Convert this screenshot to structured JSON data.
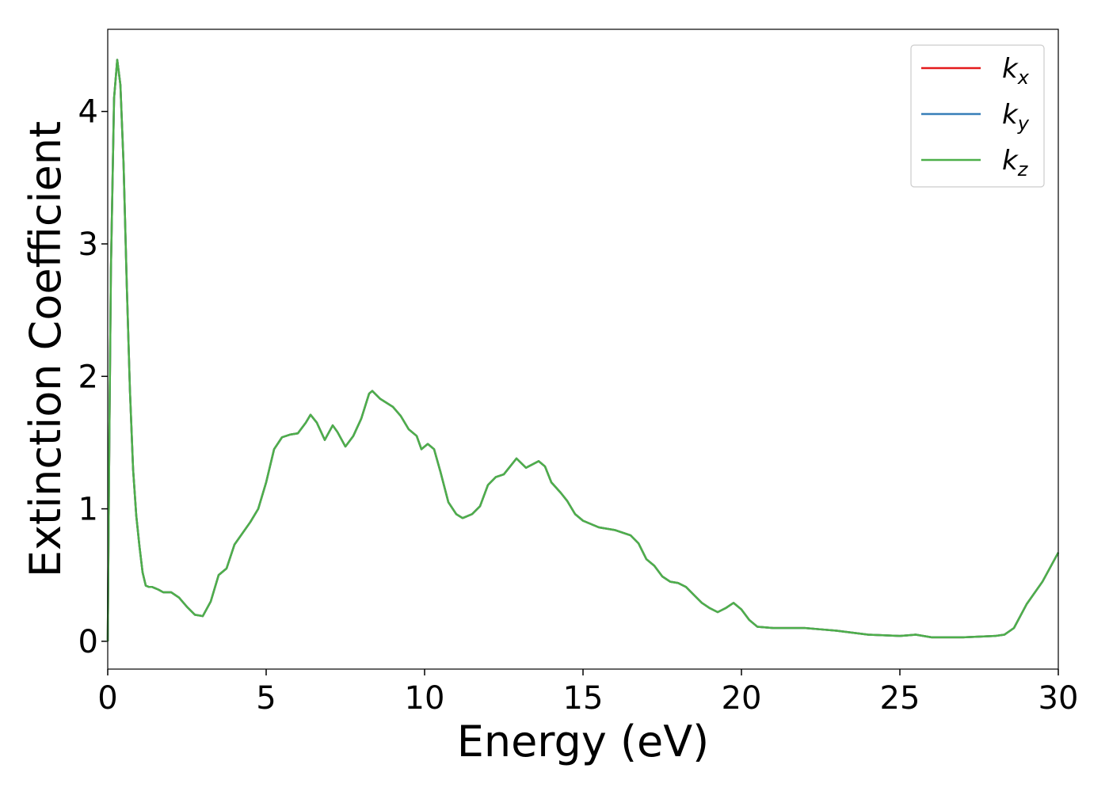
{
  "chart_data": {
    "type": "line",
    "xlabel": "Energy (eV)",
    "ylabel": "Extinction Coefficient",
    "xlim": [
      0,
      30
    ],
    "ylim": [
      -0.21,
      4.62
    ],
    "xticks": [
      0,
      5,
      10,
      15,
      20,
      25,
      30
    ],
    "yticks": [
      0,
      1,
      2,
      3,
      4
    ],
    "legend": "upper right",
    "x": [
      0,
      0.05,
      0.1,
      0.2,
      0.3,
      0.4,
      0.5,
      0.6,
      0.7,
      0.8,
      0.9,
      1.0,
      1.1,
      1.2,
      1.3,
      1.4,
      1.5,
      1.6,
      1.75,
      2.0,
      2.25,
      2.5,
      2.75,
      3.0,
      3.25,
      3.5,
      3.75,
      4.0,
      4.5,
      4.75,
      5.0,
      5.25,
      5.5,
      5.75,
      6.0,
      6.25,
      6.4,
      6.6,
      6.85,
      7.1,
      7.25,
      7.5,
      7.75,
      8.0,
      8.25,
      8.35,
      8.6,
      9.0,
      9.25,
      9.5,
      9.75,
      9.9,
      10.1,
      10.3,
      10.5,
      10.75,
      11.0,
      11.2,
      11.5,
      11.75,
      12.0,
      12.25,
      12.5,
      12.7,
      12.9,
      13.2,
      13.6,
      13.8,
      14.0,
      14.3,
      14.5,
      14.75,
      15.0,
      15.5,
      16.0,
      16.5,
      16.75,
      17.0,
      17.25,
      17.5,
      17.75,
      18.0,
      18.25,
      18.5,
      18.75,
      19.0,
      19.25,
      19.5,
      19.75,
      20.0,
      20.25,
      20.5,
      21.0,
      21.5,
      22.0,
      22.5,
      23.0,
      24.0,
      25.0,
      25.5,
      26.0,
      27.0,
      28.0,
      28.3,
      28.6,
      29.0,
      29.5,
      30.0
    ],
    "series": [
      {
        "name": "k_x",
        "color": "#e41a1c",
        "values": [
          0,
          1.5,
          2.8,
          4.1,
          4.39,
          4.2,
          3.6,
          2.7,
          1.9,
          1.3,
          0.95,
          0.72,
          0.52,
          0.42,
          0.41,
          0.41,
          0.4,
          0.39,
          0.37,
          0.37,
          0.33,
          0.26,
          0.2,
          0.19,
          0.3,
          0.5,
          0.55,
          0.73,
          0.9,
          1.0,
          1.2,
          1.45,
          1.54,
          1.56,
          1.57,
          1.65,
          1.71,
          1.65,
          1.52,
          1.63,
          1.58,
          1.47,
          1.55,
          1.68,
          1.87,
          1.89,
          1.83,
          1.77,
          1.7,
          1.6,
          1.55,
          1.45,
          1.49,
          1.45,
          1.28,
          1.05,
          0.96,
          0.93,
          0.96,
          1.02,
          1.18,
          1.24,
          1.26,
          1.32,
          1.38,
          1.31,
          1.36,
          1.32,
          1.2,
          1.12,
          1.06,
          0.96,
          0.91,
          0.86,
          0.84,
          0.8,
          0.74,
          0.62,
          0.57,
          0.49,
          0.45,
          0.44,
          0.41,
          0.35,
          0.29,
          0.25,
          0.22,
          0.25,
          0.29,
          0.24,
          0.16,
          0.11,
          0.1,
          0.1,
          0.1,
          0.09,
          0.08,
          0.05,
          0.04,
          0.05,
          0.03,
          0.03,
          0.04,
          0.05,
          0.1,
          0.28,
          0.45,
          0.67
        ]
      },
      {
        "name": "k_y",
        "color": "#377eb8",
        "values": [
          0,
          1.5,
          2.8,
          4.1,
          4.39,
          4.2,
          3.6,
          2.7,
          1.9,
          1.3,
          0.95,
          0.72,
          0.52,
          0.42,
          0.41,
          0.41,
          0.4,
          0.39,
          0.37,
          0.37,
          0.33,
          0.26,
          0.2,
          0.19,
          0.3,
          0.5,
          0.55,
          0.73,
          0.9,
          1.0,
          1.2,
          1.45,
          1.54,
          1.56,
          1.57,
          1.65,
          1.71,
          1.65,
          1.52,
          1.63,
          1.58,
          1.47,
          1.55,
          1.68,
          1.87,
          1.89,
          1.83,
          1.77,
          1.7,
          1.6,
          1.55,
          1.45,
          1.49,
          1.45,
          1.28,
          1.05,
          0.96,
          0.93,
          0.96,
          1.02,
          1.18,
          1.24,
          1.26,
          1.32,
          1.38,
          1.31,
          1.36,
          1.32,
          1.2,
          1.12,
          1.06,
          0.96,
          0.91,
          0.86,
          0.84,
          0.8,
          0.74,
          0.62,
          0.57,
          0.49,
          0.45,
          0.44,
          0.41,
          0.35,
          0.29,
          0.25,
          0.22,
          0.25,
          0.29,
          0.24,
          0.16,
          0.11,
          0.1,
          0.1,
          0.1,
          0.09,
          0.08,
          0.05,
          0.04,
          0.05,
          0.03,
          0.03,
          0.04,
          0.05,
          0.1,
          0.28,
          0.45,
          0.67
        ]
      },
      {
        "name": "k_z",
        "color": "#4daf4a",
        "values": [
          0,
          1.5,
          2.8,
          4.1,
          4.39,
          4.2,
          3.6,
          2.7,
          1.9,
          1.3,
          0.95,
          0.72,
          0.52,
          0.42,
          0.41,
          0.41,
          0.4,
          0.39,
          0.37,
          0.37,
          0.33,
          0.26,
          0.2,
          0.19,
          0.3,
          0.5,
          0.55,
          0.73,
          0.9,
          1.0,
          1.2,
          1.45,
          1.54,
          1.56,
          1.57,
          1.65,
          1.71,
          1.65,
          1.52,
          1.63,
          1.58,
          1.47,
          1.55,
          1.68,
          1.87,
          1.89,
          1.83,
          1.77,
          1.7,
          1.6,
          1.55,
          1.45,
          1.49,
          1.45,
          1.28,
          1.05,
          0.96,
          0.93,
          0.96,
          1.02,
          1.18,
          1.24,
          1.26,
          1.32,
          1.38,
          1.31,
          1.36,
          1.32,
          1.2,
          1.12,
          1.06,
          0.96,
          0.91,
          0.86,
          0.84,
          0.8,
          0.74,
          0.62,
          0.57,
          0.49,
          0.45,
          0.44,
          0.41,
          0.35,
          0.29,
          0.25,
          0.22,
          0.25,
          0.29,
          0.24,
          0.16,
          0.11,
          0.1,
          0.1,
          0.1,
          0.09,
          0.08,
          0.05,
          0.04,
          0.05,
          0.03,
          0.03,
          0.04,
          0.05,
          0.1,
          0.28,
          0.45,
          0.67
        ]
      }
    ]
  }
}
